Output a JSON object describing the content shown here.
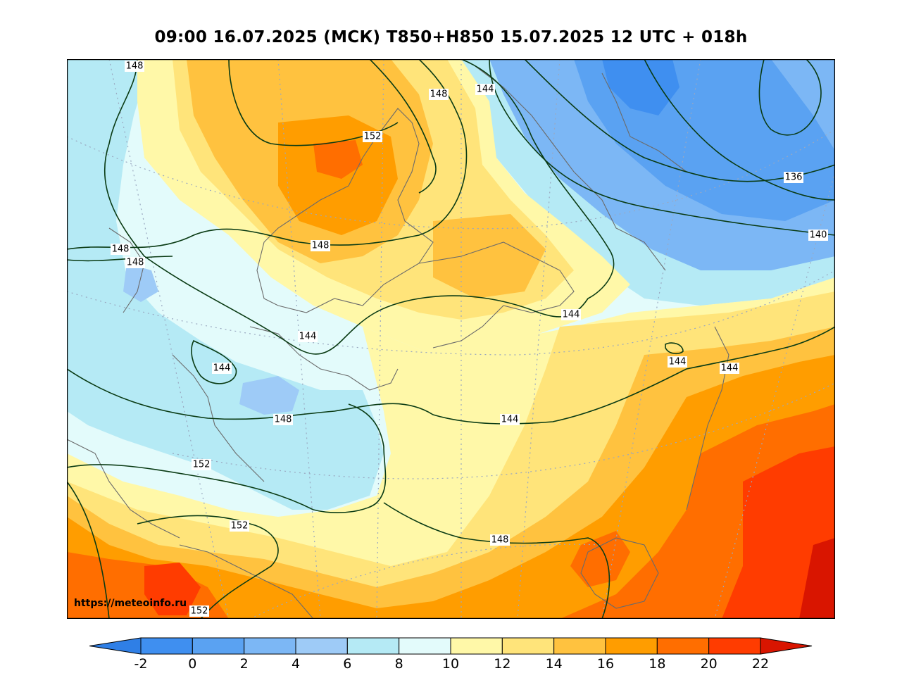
{
  "title": "09:00 16.07.2025 (МСК) T850+H850 15.07.2025 12 UTC + 018h",
  "watermark": "https://meteoinfo.ru",
  "colorbar": {
    "ticks": [
      "-2",
      "0",
      "2",
      "4",
      "6",
      "8",
      "10",
      "12",
      "14",
      "16",
      "18",
      "20",
      "22"
    ],
    "colors": [
      "#2f7fe6",
      "#3f8ff0",
      "#5aa2f2",
      "#7cb7f5",
      "#9ecbf7",
      "#b5eaf5",
      "#e3fbfb",
      "#fff8a8",
      "#ffe47a",
      "#ffc23f",
      "#ff9d00",
      "#ff6e00",
      "#ff3c00",
      "#d91500"
    ]
  },
  "contour_labels": [
    {
      "id": "c148-nw",
      "text": "148"
    },
    {
      "id": "c148-n",
      "text": "148"
    },
    {
      "id": "c144-n",
      "text": "144"
    },
    {
      "id": "c152-n",
      "text": "152"
    },
    {
      "id": "c136",
      "text": "136"
    },
    {
      "id": "c140",
      "text": "140"
    },
    {
      "id": "c148-w1",
      "text": "148"
    },
    {
      "id": "c148-w2",
      "text": "148"
    },
    {
      "id": "c148-c",
      "text": "148"
    },
    {
      "id": "c144-c",
      "text": "144"
    },
    {
      "id": "c144-e1",
      "text": "144"
    },
    {
      "id": "c144-w",
      "text": "144"
    },
    {
      "id": "c144-e2",
      "text": "144"
    },
    {
      "id": "c144-e3",
      "text": "144"
    },
    {
      "id": "c148-sw",
      "text": "148"
    },
    {
      "id": "c144-s",
      "text": "144"
    },
    {
      "id": "c152-sw",
      "text": "152"
    },
    {
      "id": "c152-s",
      "text": "152"
    },
    {
      "id": "c148-s",
      "text": "148"
    },
    {
      "id": "c152-b",
      "text": "152"
    }
  ]
}
